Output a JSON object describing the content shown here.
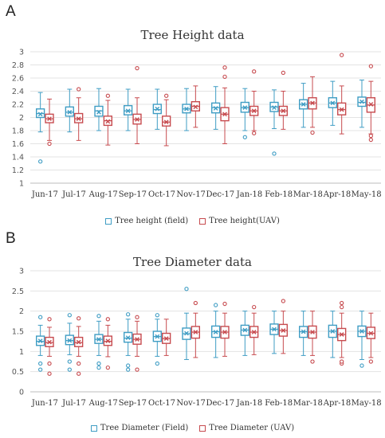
{
  "panels": [
    {
      "letter": "A"
    },
    {
      "letter": "B"
    }
  ],
  "colors": {
    "field": "#3f9dc4",
    "uav": "#c74b4f",
    "grid": "#e3e3e3"
  },
  "chart_data": [
    {
      "type": "box",
      "title": "Tree Height data",
      "categories": [
        "Jun-17",
        "Jul-17",
        "Aug-17",
        "Sep-17",
        "Oct-17",
        "Nov-17",
        "Dec-17",
        "Jan-18",
        "Feb-18",
        "Mar-18",
        "Apr-18",
        "May-18"
      ],
      "ylim": [
        1,
        3
      ],
      "yticks": [
        "1",
        "1.2",
        "1.4",
        "1.6",
        "1.8",
        "2",
        "2.2",
        "2.4",
        "2.6",
        "2.8",
        "3"
      ],
      "legend_position": "bottom",
      "grid": true,
      "series": [
        {
          "name": "Tree height (field)",
          "color": "#3f9dc4",
          "boxes": [
            {
              "min": 1.78,
              "q1": 2.0,
              "median": 2.06,
              "mean": 2.05,
              "q3": 2.13,
              "max": 2.38,
              "outliers": [
                1.33
              ]
            },
            {
              "min": 1.78,
              "q1": 2.02,
              "median": 2.08,
              "mean": 2.08,
              "q3": 2.16,
              "max": 2.43,
              "outliers": []
            },
            {
              "min": 1.8,
              "q1": 2.02,
              "median": 2.1,
              "mean": 2.08,
              "q3": 2.17,
              "max": 2.44,
              "outliers": []
            },
            {
              "min": 1.8,
              "q1": 2.04,
              "median": 2.1,
              "mean": 2.1,
              "q3": 2.18,
              "max": 2.43,
              "outliers": []
            },
            {
              "min": 1.82,
              "q1": 2.06,
              "median": 2.12,
              "mean": 2.13,
              "q3": 2.2,
              "max": 2.43,
              "outliers": []
            },
            {
              "min": 1.8,
              "q1": 2.07,
              "median": 2.13,
              "mean": 2.13,
              "q3": 2.2,
              "max": 2.44,
              "outliers": []
            },
            {
              "min": 1.82,
              "q1": 2.07,
              "median": 2.15,
              "mean": 2.14,
              "q3": 2.22,
              "max": 2.47,
              "outliers": []
            },
            {
              "min": 1.8,
              "q1": 2.08,
              "median": 2.15,
              "mean": 2.15,
              "q3": 2.23,
              "max": 2.44,
              "outliers": [
                1.7
              ]
            },
            {
              "min": 1.83,
              "q1": 2.09,
              "median": 2.16,
              "mean": 2.15,
              "q3": 2.23,
              "max": 2.42,
              "outliers": [
                1.45
              ]
            },
            {
              "min": 1.85,
              "q1": 2.13,
              "median": 2.2,
              "mean": 2.2,
              "q3": 2.27,
              "max": 2.52,
              "outliers": []
            },
            {
              "min": 1.88,
              "q1": 2.15,
              "median": 2.22,
              "mean": 2.22,
              "q3": 2.3,
              "max": 2.55,
              "outliers": []
            },
            {
              "min": 1.85,
              "q1": 2.17,
              "median": 2.23,
              "mean": 2.24,
              "q3": 2.31,
              "max": 2.57,
              "outliers": []
            }
          ]
        },
        {
          "name": "Tree height(UAV)",
          "color": "#c74b4f",
          "boxes": [
            {
              "min": 1.65,
              "q1": 1.92,
              "median": 1.98,
              "mean": 1.98,
              "q3": 2.05,
              "max": 2.28,
              "outliers": [
                1.6
              ]
            },
            {
              "min": 1.65,
              "q1": 1.92,
              "median": 1.98,
              "mean": 1.98,
              "q3": 2.06,
              "max": 2.3,
              "outliers": [
                2.43
              ]
            },
            {
              "min": 1.58,
              "q1": 1.88,
              "median": 1.95,
              "mean": 1.94,
              "q3": 2.02,
              "max": 2.26,
              "outliers": [
                2.33
              ]
            },
            {
              "min": 1.6,
              "q1": 1.9,
              "median": 1.97,
              "mean": 1.97,
              "q3": 2.05,
              "max": 2.3,
              "outliers": [
                2.75
              ]
            },
            {
              "min": 1.57,
              "q1": 1.87,
              "median": 1.93,
              "mean": 1.93,
              "q3": 2.02,
              "max": 2.27,
              "outliers": [
                2.33
              ]
            },
            {
              "min": 1.85,
              "q1": 2.1,
              "median": 2.17,
              "mean": 2.16,
              "q3": 2.24,
              "max": 2.48,
              "outliers": []
            },
            {
              "min": 1.6,
              "q1": 1.95,
              "median": 2.05,
              "mean": 2.05,
              "q3": 2.15,
              "max": 2.45,
              "outliers": [
                2.62,
                2.76
              ]
            },
            {
              "min": 1.8,
              "q1": 2.03,
              "median": 2.1,
              "mean": 2.1,
              "q3": 2.17,
              "max": 2.4,
              "outliers": [
                1.76,
                2.7
              ]
            },
            {
              "min": 1.82,
              "q1": 2.03,
              "median": 2.1,
              "mean": 2.1,
              "q3": 2.17,
              "max": 2.4,
              "outliers": [
                2.68
              ]
            },
            {
              "min": 1.85,
              "q1": 2.13,
              "median": 2.22,
              "mean": 2.22,
              "q3": 2.3,
              "max": 2.62,
              "outliers": [
                1.77
              ]
            },
            {
              "min": 1.75,
              "q1": 2.04,
              "median": 2.12,
              "mean": 2.12,
              "q3": 2.22,
              "max": 2.48,
              "outliers": [
                2.95
              ]
            },
            {
              "min": 1.75,
              "q1": 2.08,
              "median": 2.19,
              "mean": 2.2,
              "q3": 2.3,
              "max": 2.55,
              "outliers": [
                1.66,
                1.72,
                2.78
              ]
            }
          ]
        }
      ]
    },
    {
      "type": "box",
      "title": "Tree Diameter data",
      "categories": [
        "Jun-17",
        "Jul-17",
        "Aug-17",
        "Sep-17",
        "Oct-17",
        "Nov-17",
        "Dec-17",
        "Jan-18",
        "Feb-18",
        "Mar-18",
        "Apr-18",
        "May-18"
      ],
      "ylim": [
        0,
        3
      ],
      "yticks": [
        "0",
        "0.5",
        "1",
        "1.5",
        "2",
        "2.5",
        "3"
      ],
      "legend_position": "bottom",
      "grid": true,
      "series": [
        {
          "name": "Tree Diameter (Field)",
          "color": "#3f9dc4",
          "boxes": [
            {
              "min": 0.9,
              "q1": 1.15,
              "median": 1.25,
              "mean": 1.26,
              "q3": 1.38,
              "max": 1.65,
              "outliers": [
                0.55,
                0.7,
                1.85
              ]
            },
            {
              "min": 0.92,
              "q1": 1.17,
              "median": 1.27,
              "mean": 1.27,
              "q3": 1.4,
              "max": 1.7,
              "outliers": [
                0.55,
                0.75,
                1.9
              ]
            },
            {
              "min": 0.9,
              "q1": 1.2,
              "median": 1.3,
              "mean": 1.3,
              "q3": 1.42,
              "max": 1.75,
              "outliers": [
                0.6,
                0.7,
                1.88
              ]
            },
            {
              "min": 0.9,
              "q1": 1.23,
              "median": 1.33,
              "mean": 1.34,
              "q3": 1.47,
              "max": 1.8,
              "outliers": [
                0.55,
                0.65,
                1.92
              ]
            },
            {
              "min": 0.88,
              "q1": 1.25,
              "median": 1.37,
              "mean": 1.37,
              "q3": 1.5,
              "max": 1.8,
              "outliers": [
                0.7,
                1.9
              ]
            },
            {
              "min": 0.8,
              "q1": 1.3,
              "median": 1.44,
              "mean": 1.45,
              "q3": 1.58,
              "max": 1.95,
              "outliers": [
                2.55
              ]
            },
            {
              "min": 0.85,
              "q1": 1.35,
              "median": 1.49,
              "mean": 1.48,
              "q3": 1.63,
              "max": 2.0,
              "outliers": [
                2.15
              ]
            },
            {
              "min": 0.9,
              "q1": 1.4,
              "median": 1.53,
              "mean": 1.53,
              "q3": 1.65,
              "max": 2.0,
              "outliers": []
            },
            {
              "min": 0.95,
              "q1": 1.42,
              "median": 1.55,
              "mean": 1.55,
              "q3": 1.68,
              "max": 2.0,
              "outliers": []
            },
            {
              "min": 0.9,
              "q1": 1.35,
              "median": 1.49,
              "mean": 1.49,
              "q3": 1.62,
              "max": 2.0,
              "outliers": []
            },
            {
              "min": 0.85,
              "q1": 1.35,
              "median": 1.5,
              "mean": 1.5,
              "q3": 1.65,
              "max": 2.0,
              "outliers": []
            },
            {
              "min": 0.8,
              "q1": 1.37,
              "median": 1.5,
              "mean": 1.5,
              "q3": 1.63,
              "max": 2.0,
              "outliers": [
                0.65
              ]
            }
          ]
        },
        {
          "name": "Tree Diameter (UAV)",
          "color": "#c74b4f",
          "boxes": [
            {
              "min": 0.88,
              "q1": 1.12,
              "median": 1.22,
              "mean": 1.23,
              "q3": 1.35,
              "max": 1.6,
              "outliers": [
                0.45,
                0.7,
                1.8
              ]
            },
            {
              "min": 0.88,
              "q1": 1.12,
              "median": 1.22,
              "mean": 1.23,
              "q3": 1.35,
              "max": 1.62,
              "outliers": [
                0.45,
                0.7,
                1.82
              ]
            },
            {
              "min": 0.87,
              "q1": 1.15,
              "median": 1.25,
              "mean": 1.26,
              "q3": 1.38,
              "max": 1.65,
              "outliers": [
                0.6,
                1.8
              ]
            },
            {
              "min": 0.88,
              "q1": 1.18,
              "median": 1.3,
              "mean": 1.3,
              "q3": 1.43,
              "max": 1.75,
              "outliers": [
                0.55,
                1.85
              ]
            },
            {
              "min": 0.9,
              "q1": 1.2,
              "median": 1.32,
              "mean": 1.32,
              "q3": 1.45,
              "max": 1.8,
              "outliers": []
            },
            {
              "min": 0.85,
              "q1": 1.33,
              "median": 1.48,
              "mean": 1.48,
              "q3": 1.62,
              "max": 1.95,
              "outliers": [
                2.2
              ]
            },
            {
              "min": 0.88,
              "q1": 1.33,
              "median": 1.48,
              "mean": 1.48,
              "q3": 1.62,
              "max": 1.95,
              "outliers": [
                2.18
              ]
            },
            {
              "min": 0.92,
              "q1": 1.35,
              "median": 1.48,
              "mean": 1.48,
              "q3": 1.62,
              "max": 1.95,
              "outliers": [
                2.1
              ]
            },
            {
              "min": 0.95,
              "q1": 1.38,
              "median": 1.52,
              "mean": 1.52,
              "q3": 1.67,
              "max": 2.0,
              "outliers": [
                2.25
              ]
            },
            {
              "min": 0.9,
              "q1": 1.33,
              "median": 1.48,
              "mean": 1.48,
              "q3": 1.63,
              "max": 2.0,
              "outliers": [
                0.75
              ]
            },
            {
              "min": 0.85,
              "q1": 1.27,
              "median": 1.42,
              "mean": 1.42,
              "q3": 1.57,
              "max": 1.95,
              "outliers": [
                0.7,
                0.75,
                2.1,
                2.2
              ]
            },
            {
              "min": 0.85,
              "q1": 1.32,
              "median": 1.45,
              "mean": 1.45,
              "q3": 1.6,
              "max": 1.95,
              "outliers": [
                0.75
              ]
            }
          ]
        }
      ]
    }
  ]
}
